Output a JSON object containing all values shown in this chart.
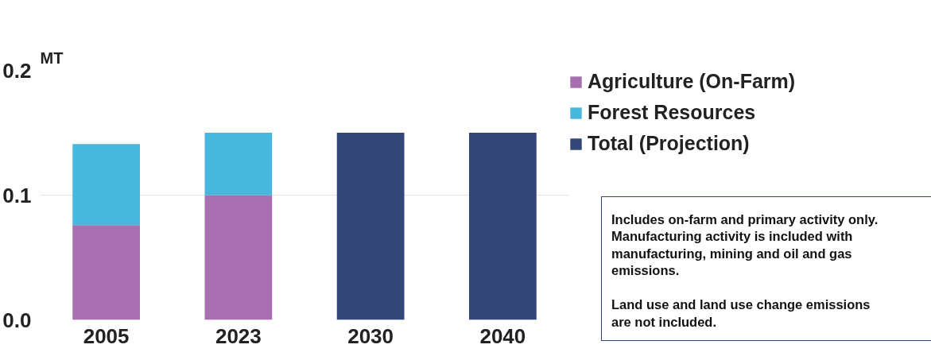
{
  "chart_data": {
    "type": "bar",
    "stacked": true,
    "ylabel": "MT",
    "categories": [
      "2005",
      "2023",
      "2030",
      "2040"
    ],
    "series": [
      {
        "name": "Agriculture (On-Farm)",
        "color": "#a76fb0",
        "values": [
          0.076,
          0.1,
          null,
          null
        ]
      },
      {
        "name": "Forest Resources",
        "color": "#48b7de",
        "values": [
          0.065,
          0.05,
          null,
          null
        ]
      },
      {
        "name": "Total (Projection)",
        "color": "#344577",
        "values": [
          null,
          null,
          0.15,
          0.15
        ]
      }
    ],
    "ylim": [
      0,
      0.2
    ],
    "yticks": [
      {
        "value": 0,
        "label": "0.0"
      },
      0.1,
      0.2
    ],
    "grid": "y",
    "legend": "top right",
    "annotations": [
      "Includes on-farm and primary activity only.\nManufacturing activity is included with\nmanufacturing, mining and oil and gas\nemissions.\n\nLand use and land use change emissions\nare not included."
    ]
  }
}
